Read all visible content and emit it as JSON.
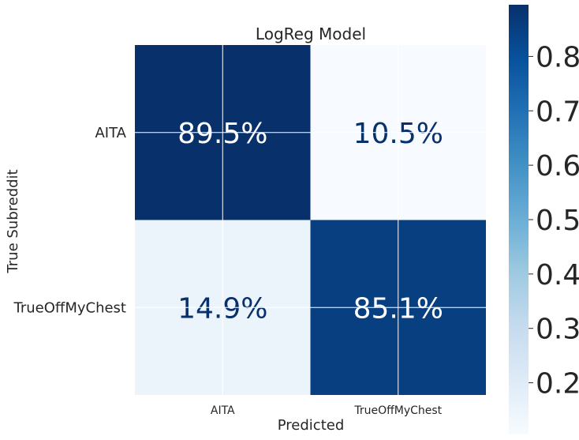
{
  "chart_data": {
    "type": "heatmap",
    "title": "LogReg Model",
    "xlabel": "Predicted",
    "ylabel": "True Subreddit",
    "x_categories": [
      "AITA",
      "TrueOffMyChest"
    ],
    "y_categories": [
      "AITA",
      "TrueOffMyChest"
    ],
    "values": [
      [
        0.895,
        0.105
      ],
      [
        0.149,
        0.851
      ]
    ],
    "cell_labels": [
      [
        "89.5%",
        "10.5%"
      ],
      [
        "14.9%",
        "85.1%"
      ]
    ],
    "colorbar": {
      "min": 0.105,
      "max": 0.895,
      "ticks": [
        0.2,
        0.3,
        0.4,
        0.5,
        0.6,
        0.7,
        0.8
      ],
      "tick_labels": [
        "0.2",
        "0.3",
        "0.4",
        "0.5",
        "0.6",
        "0.7",
        "0.8"
      ]
    },
    "colormap": "Blues",
    "grid": true
  }
}
